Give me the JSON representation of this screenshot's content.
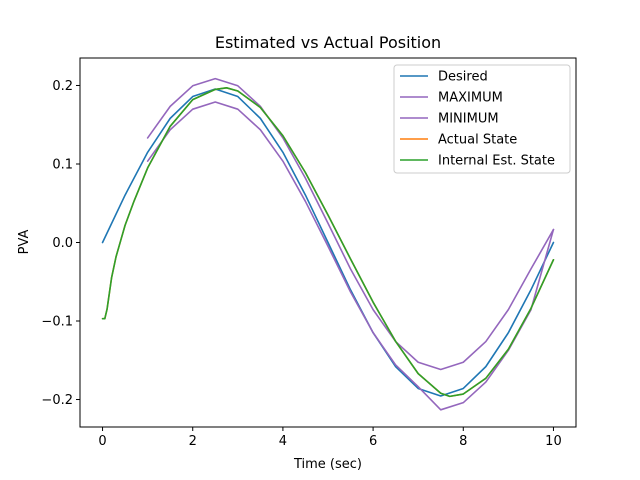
{
  "chart_data": {
    "type": "line",
    "title": "Estimated vs Actual Position",
    "xlabel": "Time (sec)",
    "ylabel": "PVA",
    "xlim": [
      -0.5,
      10.5
    ],
    "ylim": [
      -0.235,
      0.235
    ],
    "xticks": [
      0,
      2,
      4,
      6,
      8,
      10
    ],
    "xtick_labels": [
      "0",
      "2",
      "4",
      "6",
      "8",
      "10"
    ],
    "yticks": [
      -0.2,
      -0.1,
      0.0,
      0.1,
      0.2
    ],
    "ytick_labels": [
      "−0.2",
      "−0.1",
      "0.0",
      "0.1",
      "0.2"
    ],
    "grid": false,
    "legend_position": "top-right",
    "series": [
      {
        "name": "Desired",
        "color": "#1f77b4",
        "x": [
          0,
          0.5,
          1,
          1.5,
          2,
          2.5,
          3,
          3.5,
          4,
          4.5,
          5,
          5.5,
          6,
          6.5,
          7,
          7.5,
          8,
          8.5,
          9,
          9.5,
          10
        ],
        "y": [
          0.0,
          0.0604,
          0.1149,
          0.1581,
          0.1859,
          0.1955,
          0.1859,
          0.1581,
          0.1149,
          0.0604,
          0.0,
          -0.0604,
          -0.1149,
          -0.1581,
          -0.1859,
          -0.1955,
          -0.1859,
          -0.1581,
          -0.1149,
          -0.0604,
          0.0
        ]
      },
      {
        "name": "MAXIMUM",
        "color": "#9467bd",
        "x": [
          1,
          1.5,
          2,
          2.5,
          3,
          3.5,
          4,
          4.5,
          5,
          5.5,
          6,
          6.5,
          7,
          7.5,
          8,
          8.5,
          9,
          9.5,
          10
        ],
        "y": [
          0.1332,
          0.1734,
          0.1996,
          0.2087,
          0.1996,
          0.1734,
          0.1332,
          0.0818,
          0.0245,
          -0.0338,
          -0.0855,
          -0.1262,
          -0.1525,
          -0.1617,
          -0.1525,
          -0.1262,
          -0.0855,
          -0.0338,
          0.0165
        ]
      },
      {
        "name": "MINIMUM",
        "color": "#9467bd",
        "x": [
          1,
          1.5,
          2,
          2.5,
          3,
          3.5,
          4,
          4.5,
          5,
          5.5,
          6,
          6.5,
          7,
          7.5,
          8,
          8.5,
          9,
          9.5,
          10
        ],
        "y": [
          0.1036,
          0.1436,
          0.1698,
          0.1789,
          0.1698,
          0.1436,
          0.1036,
          0.0523,
          -0.0048,
          -0.063,
          -0.1148,
          -0.156,
          -0.1837,
          -0.2131,
          -0.204,
          -0.1778,
          -0.1373,
          -0.0858,
          0.0165
        ]
      },
      {
        "name": "Actual State",
        "color": "#ff7f0e",
        "x": [
          0,
          0.05,
          0.1,
          0.15,
          0.2,
          0.3,
          0.4,
          0.5,
          0.7,
          1,
          1.5,
          2,
          2.5,
          2.75,
          3,
          3.5,
          4,
          4.5,
          5,
          5.5,
          6,
          6.5,
          7,
          7.5,
          7.7,
          8,
          8.5,
          9,
          9.5,
          10
        ],
        "y": [
          -0.097,
          -0.097,
          -0.085,
          -0.065,
          -0.045,
          -0.018,
          0.002,
          0.022,
          0.053,
          0.095,
          0.148,
          0.182,
          0.195,
          0.197,
          0.193,
          0.172,
          0.136,
          0.089,
          0.035,
          -0.021,
          -0.076,
          -0.126,
          -0.167,
          -0.192,
          -0.196,
          -0.193,
          -0.173,
          -0.136,
          -0.084,
          -0.022
        ]
      },
      {
        "name": "Internal Est. State",
        "color": "#2ca02c",
        "x": [
          0,
          0.05,
          0.1,
          0.15,
          0.2,
          0.3,
          0.4,
          0.5,
          0.7,
          1,
          1.5,
          2,
          2.5,
          2.75,
          3,
          3.5,
          4,
          4.5,
          5,
          5.5,
          6,
          6.5,
          7,
          7.5,
          7.7,
          8,
          8.5,
          9,
          9.5,
          10
        ],
        "y": [
          -0.097,
          -0.097,
          -0.085,
          -0.065,
          -0.045,
          -0.018,
          0.002,
          0.022,
          0.053,
          0.095,
          0.148,
          0.182,
          0.195,
          0.197,
          0.193,
          0.172,
          0.136,
          0.089,
          0.035,
          -0.021,
          -0.076,
          -0.126,
          -0.167,
          -0.192,
          -0.196,
          -0.193,
          -0.173,
          -0.136,
          -0.084,
          -0.022
        ]
      }
    ]
  }
}
